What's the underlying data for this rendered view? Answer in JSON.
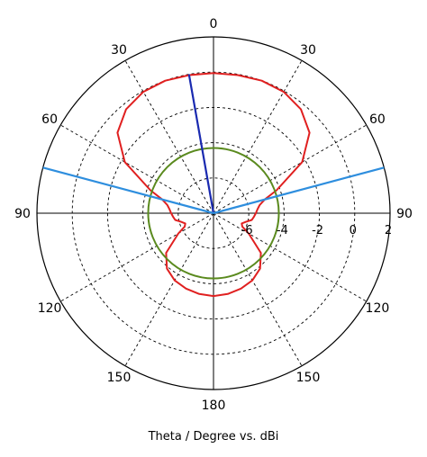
{
  "chart_data": {
    "type": "polar",
    "caption": "Theta / Degree vs. dBi",
    "angle_axis": {
      "zero": "top",
      "symmetric_labels": true,
      "tick_labels": [
        {
          "angle": 0,
          "text": "0"
        },
        {
          "angle": 30,
          "text": "30"
        },
        {
          "angle": 60,
          "text": "60"
        },
        {
          "angle": 90,
          "text": "90"
        },
        {
          "angle": 120,
          "text": "120"
        },
        {
          "angle": 150,
          "text": "150"
        },
        {
          "angle": 180,
          "text": "180"
        },
        {
          "angle": -30,
          "text": "30"
        },
        {
          "angle": -60,
          "text": "60"
        },
        {
          "angle": -90,
          "text": "90"
        },
        {
          "angle": -120,
          "text": "120"
        },
        {
          "angle": -150,
          "text": "150"
        }
      ]
    },
    "radial_axis": {
      "unit": "dBi",
      "range": [
        -8,
        2
      ],
      "rings": [
        -6,
        -4,
        -2,
        0,
        2
      ],
      "tick_labels": [
        "-6",
        "-4",
        "-2",
        "0",
        "2"
      ]
    },
    "grid": true,
    "series": [
      {
        "color": "#e02020",
        "description_points": "theta in degrees, gain in dBi",
        "theta": [
          -180,
          -170,
          -160,
          -150,
          -140,
          -130,
          -120,
          -115,
          -110,
          -105,
          -100,
          -95,
          -90,
          -85,
          -80,
          -75,
          -70,
          -60,
          -50,
          -40,
          -30,
          -20,
          -10,
          0,
          10,
          20,
          30,
          40,
          50,
          60,
          70,
          75,
          80,
          85,
          90,
          95,
          100,
          105,
          110,
          115,
          120,
          130,
          140,
          150,
          160,
          170,
          180
        ],
        "r": [
          -3.3,
          -3.35,
          -3.45,
          -3.6,
          -3.9,
          -4.5,
          -5.7,
          -6.2,
          -6.3,
          -6.1,
          -5.8,
          -5.7,
          -5.6,
          -5.5,
          -5.35,
          -5.0,
          -4.2,
          -2.2,
          -0.9,
          -0.3,
          -0.05,
          0.0,
          -0.05,
          -0.05,
          -0.05,
          0.0,
          -0.05,
          -0.3,
          -0.9,
          -2.2,
          -4.2,
          -5.0,
          -5.35,
          -5.5,
          -5.6,
          -5.7,
          -5.8,
          -6.1,
          -6.3,
          -6.2,
          -5.7,
          -4.5,
          -3.9,
          -3.6,
          -3.45,
          -3.35,
          -3.3
        ]
      },
      {
        "color": "#5a8a1e",
        "description_points": "constant reference circle",
        "theta": [
          0,
          360
        ],
        "r": [
          -4.3,
          -4.3
        ]
      }
    ],
    "markers": [
      {
        "color": "#1a2ab0",
        "theta": -10,
        "r": 0.0
      },
      {
        "color": "#2e8ede",
        "theta": -75,
        "r": 2.0
      },
      {
        "color": "#2e8ede",
        "theta": 75,
        "r": 2.0
      }
    ]
  }
}
